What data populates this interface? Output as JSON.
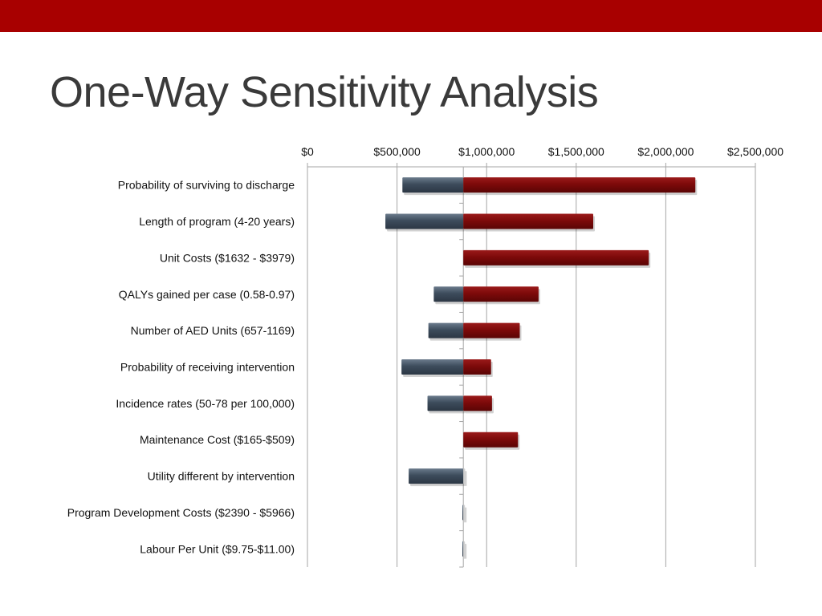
{
  "colors": {
    "top_bar": "#a80000",
    "low_bar": "#3d4c5c",
    "high_bar": "#7d0a0a",
    "grid": "#a6a6a6"
  },
  "slide": {
    "title": "One-Way Sensitivity Analysis"
  },
  "chart_data": {
    "type": "bar",
    "orientation": "horizontal",
    "title": "",
    "xlabel": "",
    "ylabel": "",
    "xlim": [
      0,
      2500000
    ],
    "baseline": 870000,
    "grid": true,
    "x_ticks": [
      0,
      500000,
      1000000,
      1500000,
      2000000,
      2500000
    ],
    "x_tick_labels": [
      "$0",
      "$500,000",
      "$1,000,000",
      "$1,500,000",
      "$2,000,000",
      "$2,500,000"
    ],
    "categories": [
      "Probability of surviving to discharge",
      "Length of program (4-20 years)",
      "Unit Costs ($1632 - $3979)",
      "QALYs gained per case (0.58-0.97)",
      "Number of AED Units (657-1169)",
      "Probability of receiving intervention",
      "Incidence rates (50-78 per 100,000)",
      "Maintenance Cost ($165-$509)",
      "Utility different by intervention",
      "Program Development Costs ($2390 - $5966)",
      "Labour Per Unit ($9.75-$11.00)"
    ],
    "series": [
      {
        "values": [
          530000,
          435000,
          870000,
          705000,
          675000,
          525000,
          670000,
          870000,
          565000,
          865000,
          865000
        ]
      },
      {
        "values": [
          2165000,
          1595000,
          1905000,
          1290000,
          1185000,
          1025000,
          1030000,
          1175000,
          880000,
          878000,
          878000
        ]
      }
    ]
  }
}
